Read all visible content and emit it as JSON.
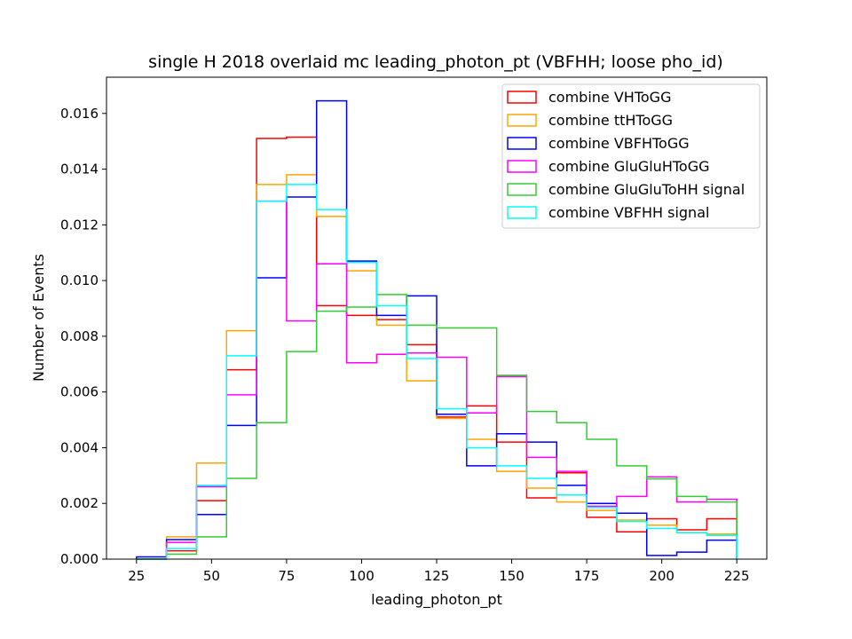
{
  "chart_data": {
    "type": "histogram",
    "title": "single H 2018 overlaid mc leading_photon_pt (VBFHH; loose pho_id)",
    "xlabel": "leading_photon_pt",
    "ylabel": "Number of Events",
    "xlim": [
      15,
      235
    ],
    "ylim": [
      0,
      0.0173
    ],
    "xticks": [
      25,
      50,
      75,
      100,
      125,
      150,
      175,
      200,
      225
    ],
    "xtick_labels": [
      "25",
      "50",
      "75",
      "100",
      "125",
      "150",
      "175",
      "200",
      "225"
    ],
    "yticks": [
      0,
      0.002,
      0.004,
      0.006,
      0.008,
      0.01,
      0.012,
      0.014,
      0.016
    ],
    "ytick_labels": [
      "0.000",
      "0.002",
      "0.004",
      "0.006",
      "0.008",
      "0.010",
      "0.012",
      "0.014",
      "0.016"
    ],
    "bin_edges": [
      25,
      35,
      45,
      55,
      65,
      75,
      85,
      95,
      105,
      115,
      125,
      135,
      145,
      155,
      165,
      175,
      185,
      195,
      205,
      215,
      225
    ],
    "grid": false,
    "legend_position": "top-right",
    "series": [
      {
        "name": "combine VHToGG",
        "color": "#ff0000",
        "values": [
          0.0,
          0.0003,
          0.0021,
          0.0068,
          0.0151,
          0.01515,
          0.0091,
          0.00875,
          0.0086,
          0.0077,
          0.0051,
          0.0055,
          0.0042,
          0.0022,
          0.0031,
          0.0015,
          0.00098,
          0.00145,
          0.00105,
          0.00145
        ]
      },
      {
        "name": "combine ttHToGG",
        "color": "#ffa500",
        "values": [
          0.0,
          0.0008,
          0.00345,
          0.0082,
          0.01345,
          0.0138,
          0.0123,
          0.01035,
          0.0084,
          0.0064,
          0.00505,
          0.0043,
          0.00315,
          0.00255,
          0.00205,
          0.00175,
          0.0014,
          0.00122,
          0.00095,
          0.0009
        ]
      },
      {
        "name": "combine VBFHToGG",
        "color": "#0000ff",
        "values": [
          8e-05,
          0.0007,
          0.0016,
          0.0048,
          0.0101,
          0.013,
          0.01645,
          0.0107,
          0.00875,
          0.00945,
          0.0052,
          0.00335,
          0.0045,
          0.0042,
          0.00265,
          0.002,
          0.00165,
          0.00013,
          0.00025,
          0.00068
        ]
      },
      {
        "name": "combine GluGluHToGG",
        "color": "#ff00ff",
        "values": [
          0.0,
          0.0006,
          0.0026,
          0.0059,
          0.01285,
          0.00855,
          0.0106,
          0.00705,
          0.00735,
          0.0074,
          0.00725,
          0.00525,
          0.00655,
          0.00365,
          0.00315,
          0.0019,
          0.00225,
          0.00295,
          0.00205,
          0.00215
        ]
      },
      {
        "name": "combine GluGluToHH signal",
        "color": "#32cd32",
        "values": [
          0.0,
          0.00018,
          0.0008,
          0.0029,
          0.0049,
          0.00745,
          0.0089,
          0.00905,
          0.0095,
          0.0084,
          0.0083,
          0.0083,
          0.0066,
          0.0053,
          0.0049,
          0.0043,
          0.00335,
          0.00288,
          0.00225,
          0.00205
        ]
      },
      {
        "name": "combine VBFHH signal",
        "color": "#00ffff",
        "values": [
          0.0,
          0.00038,
          0.00265,
          0.0073,
          0.01285,
          0.01345,
          0.01255,
          0.01065,
          0.0091,
          0.0072,
          0.0054,
          0.004,
          0.00335,
          0.0029,
          0.0023,
          0.00185,
          0.00135,
          0.0011,
          0.00095,
          0.00085
        ]
      }
    ]
  }
}
